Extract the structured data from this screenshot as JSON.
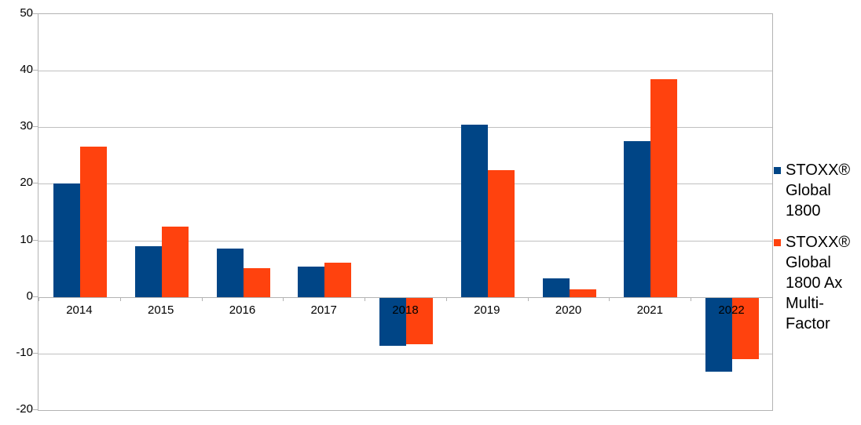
{
  "chart_data": {
    "type": "bar",
    "title": "",
    "xlabel": "",
    "ylabel": "",
    "categories": [
      "2014",
      "2015",
      "2016",
      "2017",
      "2018",
      "2019",
      "2020",
      "2021",
      "2022"
    ],
    "series": [
      {
        "name": "STOXX® Global 1800",
        "color": "#004586",
        "values": [
          20.1,
          9.0,
          8.6,
          5.4,
          -8.7,
          30.4,
          3.3,
          27.6,
          -13.2
        ]
      },
      {
        "name": "STOXX® Global 1800 Ax Multi-Factor",
        "color": "#FF420E",
        "values": [
          26.6,
          12.5,
          5.1,
          6.1,
          -8.4,
          22.4,
          1.4,
          38.5,
          -11.0
        ]
      }
    ],
    "ylim": [
      -20,
      50
    ],
    "ytick_interval": 10,
    "ytick_labels": [
      "50",
      "40",
      "30",
      "20",
      "10",
      "0",
      "-10",
      "-20"
    ],
    "grid": true,
    "legend_position": "right"
  },
  "legend": {
    "entries": [
      {
        "label": "STOXX® Global 1800",
        "color": "#004586"
      },
      {
        "label": "STOXX® Global 1800 Ax Multi-Factor",
        "color": "#FF420E"
      }
    ]
  },
  "colors": {
    "series1": "#004586",
    "series2": "#FF420E",
    "gridline": "#c0c0c0",
    "axis_border": "#b3b3b3",
    "background": "#ffffff",
    "text": "#000000"
  }
}
